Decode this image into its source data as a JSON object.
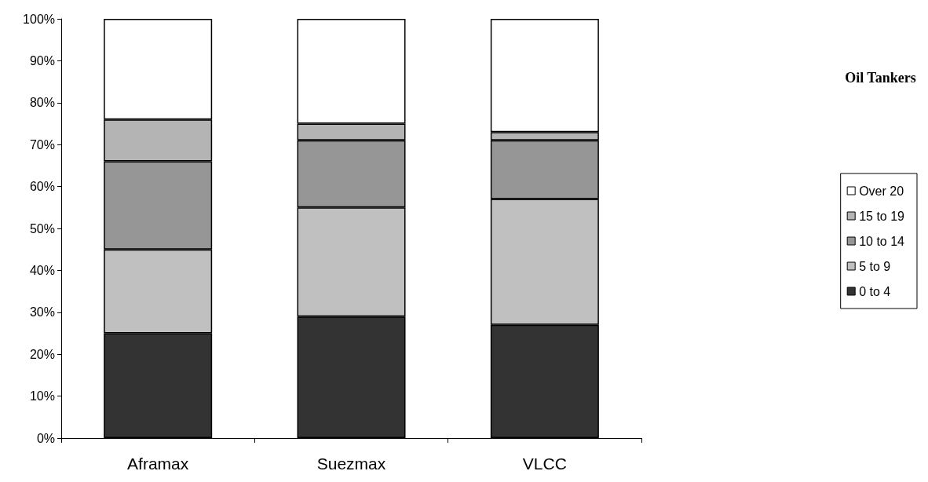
{
  "chart_data": {
    "type": "bar",
    "title": "Oil Tankers",
    "stacked": true,
    "categories": [
      "Aframax",
      "Suezmax",
      "VLCC"
    ],
    "series": [
      {
        "name": "0 to 4",
        "color": "#333333",
        "values": [
          25,
          29,
          27
        ]
      },
      {
        "name": "5 to 9",
        "color": "#c0c0c0",
        "values": [
          20,
          26,
          30
        ]
      },
      {
        "name": "10 to 14",
        "color": "#969696",
        "values": [
          21,
          16,
          14
        ]
      },
      {
        "name": "15 to 19",
        "color": "#b4b4b4",
        "values": [
          10,
          4,
          2
        ]
      },
      {
        "name": "Over 20",
        "color": "#ffffff",
        "values": [
          24,
          25,
          27
        ]
      }
    ],
    "ylim": [
      0,
      100
    ],
    "yticks": [
      {
        "value": 0,
        "label": "0%"
      },
      {
        "value": 10,
        "label": "10%"
      },
      {
        "value": 20,
        "label": "20%"
      },
      {
        "value": 30,
        "label": "30%"
      },
      {
        "value": 40,
        "label": "40%"
      },
      {
        "value": 50,
        "label": "50%"
      },
      {
        "value": 60,
        "label": "60%"
      },
      {
        "value": 70,
        "label": "70%"
      },
      {
        "value": 80,
        "label": "80%"
      },
      {
        "value": 90,
        "label": "90%"
      },
      {
        "value": 100,
        "label": "100%"
      }
    ],
    "grid": false,
    "legend": "right"
  }
}
